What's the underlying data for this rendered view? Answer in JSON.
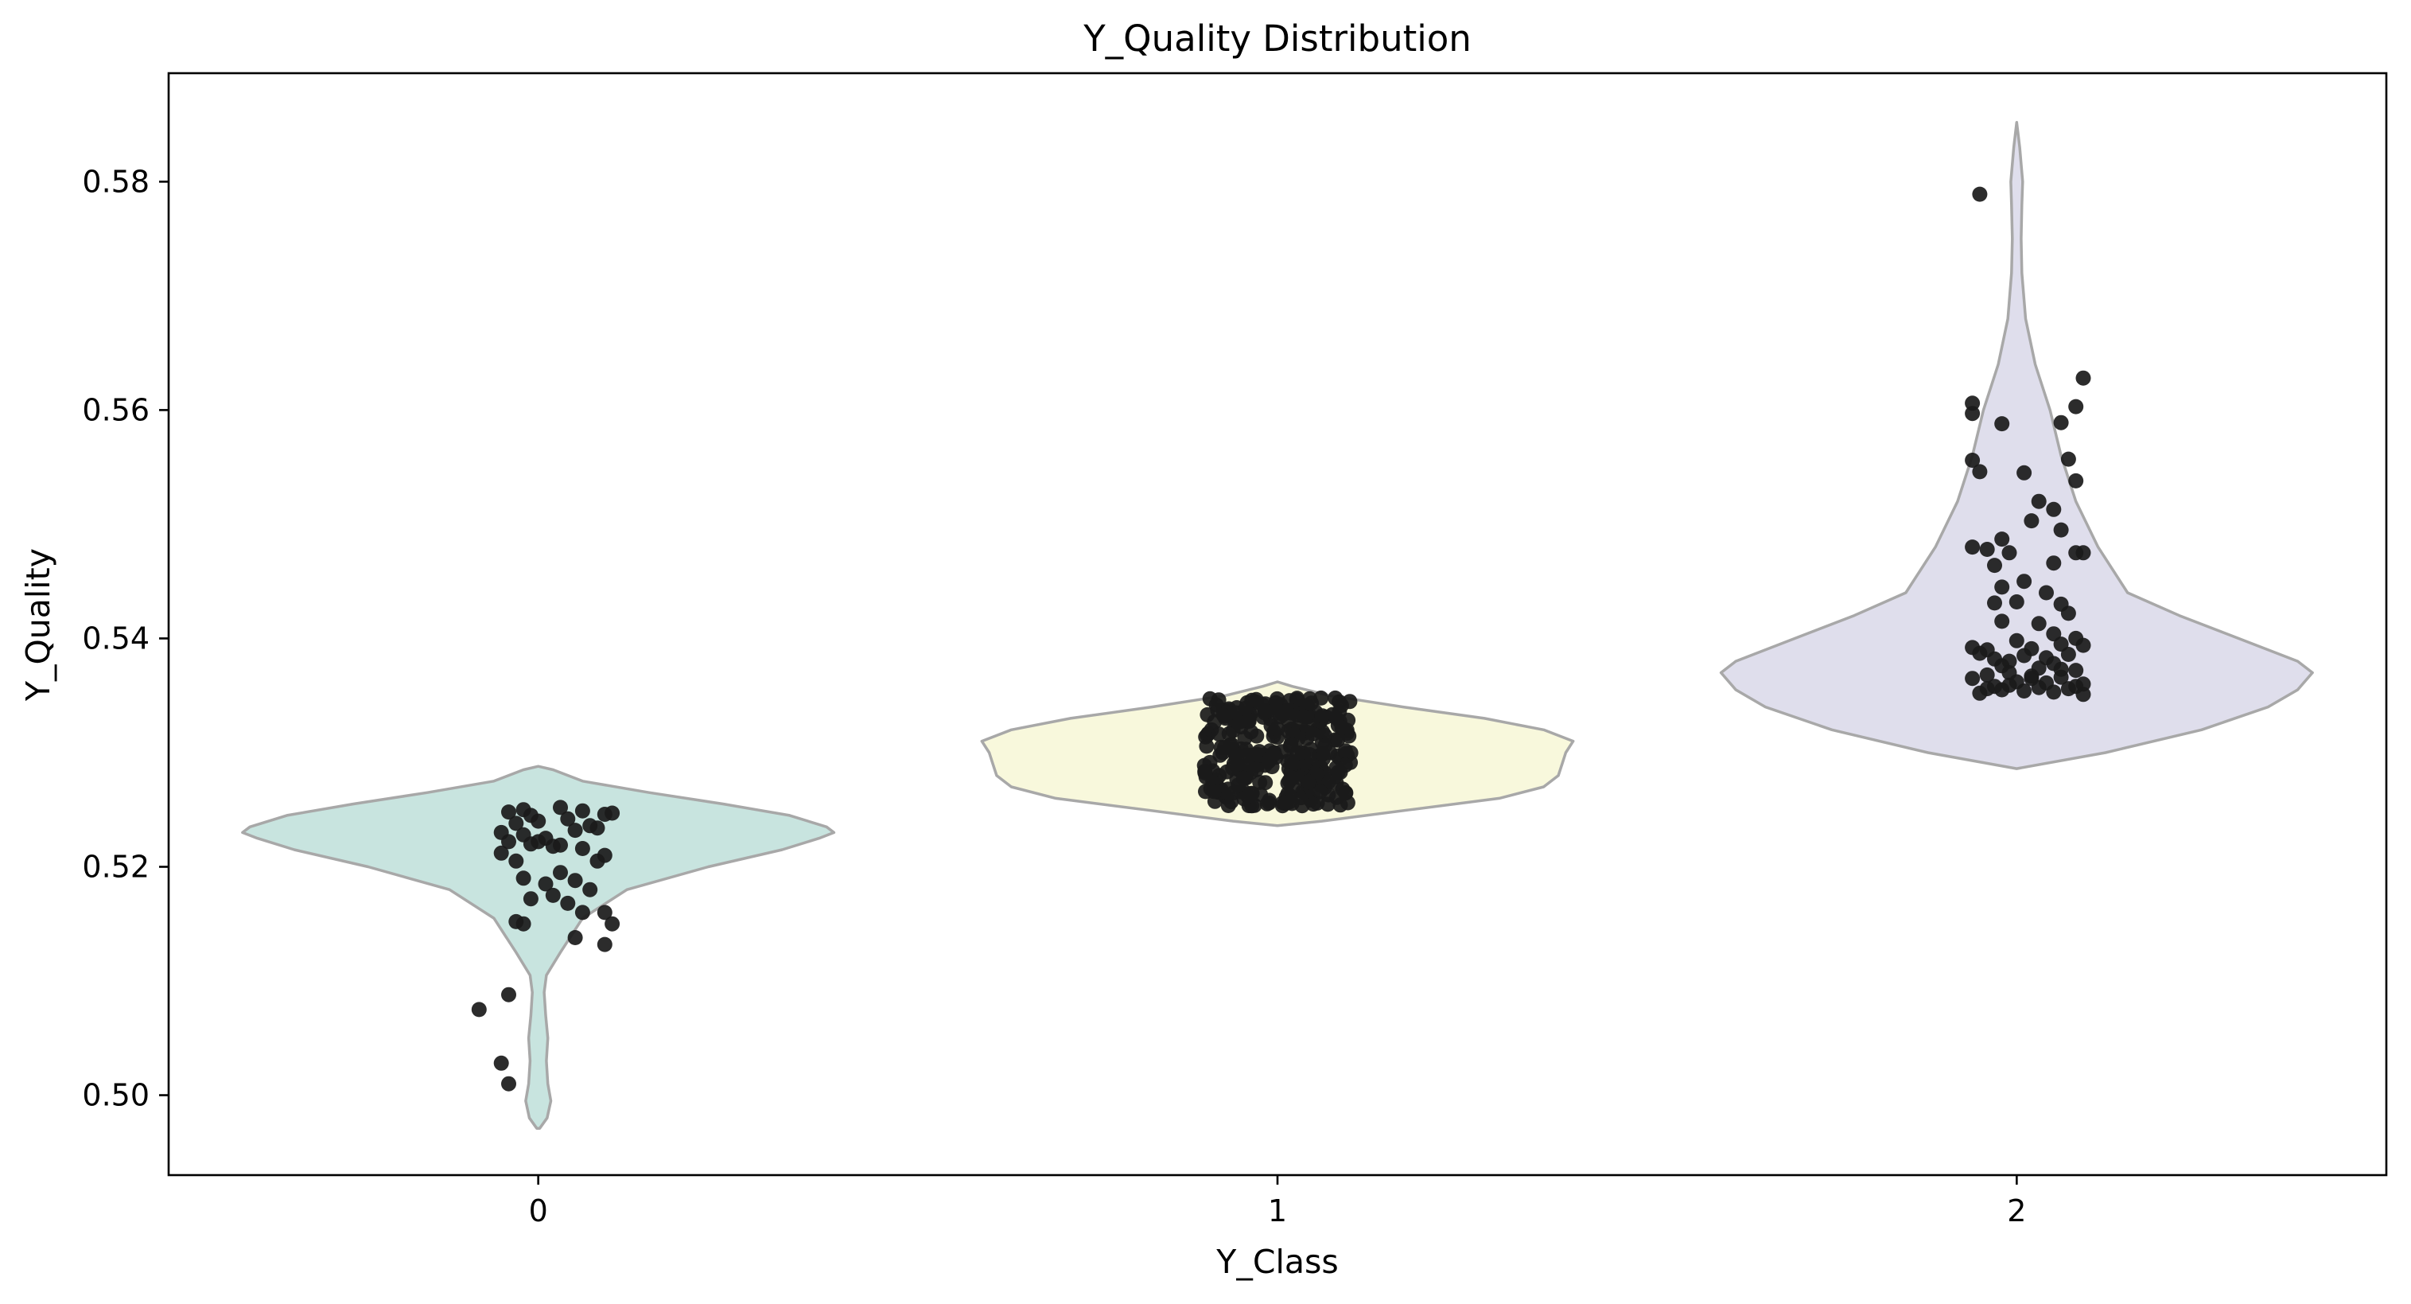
{
  "chart_data": {
    "type": "violin",
    "title": "Y_Quality Distribution",
    "xlabel": "Y_Class",
    "ylabel": "Y_Quality",
    "categories": [
      "0",
      "1",
      "2"
    ],
    "ylim": [
      0.493,
      0.5895
    ],
    "yticks": [
      "0.50",
      "0.52",
      "0.54",
      "0.56",
      "0.58"
    ],
    "grid": false,
    "legend": "none",
    "colors": {
      "violin_fills": [
        "#c8e4df",
        "#f8f8dc",
        "#dfdeec"
      ],
      "violin_outline": "#a8a8a8",
      "points": "#1a1a1a"
    },
    "violins": [
      {
        "category": "0",
        "profile": [
          [
            0.4971,
            0.002
          ],
          [
            0.498,
            0.012
          ],
          [
            0.4995,
            0.017
          ],
          [
            0.501,
            0.013
          ],
          [
            0.503,
            0.011
          ],
          [
            0.505,
            0.013
          ],
          [
            0.507,
            0.01
          ],
          [
            0.509,
            0.008
          ],
          [
            0.5105,
            0.011
          ],
          [
            0.5125,
            0.03
          ],
          [
            0.5155,
            0.06
          ],
          [
            0.518,
            0.12
          ],
          [
            0.52,
            0.23
          ],
          [
            0.5215,
            0.33
          ],
          [
            0.5225,
            0.38
          ],
          [
            0.523,
            0.4
          ],
          [
            0.5235,
            0.39
          ],
          [
            0.5245,
            0.34
          ],
          [
            0.5255,
            0.25
          ],
          [
            0.5265,
            0.15
          ],
          [
            0.5275,
            0.06
          ],
          [
            0.5285,
            0.02
          ],
          [
            0.5288,
            0.0
          ]
        ],
        "points": [
          [
            -0.04,
            0.5248
          ],
          [
            -0.02,
            0.525
          ],
          [
            -0.01,
            0.5245
          ],
          [
            0.03,
            0.5252
          ],
          [
            0.06,
            0.5249
          ],
          [
            0.09,
            0.5246
          ],
          [
            -0.03,
            0.5238
          ],
          [
            0.0,
            0.524
          ],
          [
            0.04,
            0.5242
          ],
          [
            0.07,
            0.5236
          ],
          [
            0.1,
            0.5247
          ],
          [
            -0.05,
            0.523
          ],
          [
            -0.02,
            0.5228
          ],
          [
            0.01,
            0.5225
          ],
          [
            0.05,
            0.5232
          ],
          [
            0.08,
            0.5234
          ],
          [
            -0.04,
            0.5222
          ],
          [
            -0.01,
            0.522
          ],
          [
            0.02,
            0.5218
          ],
          [
            0.06,
            0.5216
          ],
          [
            0.09,
            0.521
          ],
          [
            -0.05,
            0.5212
          ],
          [
            -0.03,
            0.5205
          ],
          [
            0.0,
            0.5222
          ],
          [
            0.03,
            0.5219
          ],
          [
            0.08,
            0.5205
          ],
          [
            -0.02,
            0.519
          ],
          [
            0.01,
            0.5185
          ],
          [
            0.03,
            0.5195
          ],
          [
            0.05,
            0.5188
          ],
          [
            0.07,
            0.518
          ],
          [
            0.02,
            0.5175
          ],
          [
            0.04,
            0.5168
          ],
          [
            -0.01,
            0.5172
          ],
          [
            0.09,
            0.516
          ],
          [
            0.06,
            0.516
          ],
          [
            -0.03,
            0.5152
          ],
          [
            -0.02,
            0.515
          ],
          [
            0.1,
            0.515
          ],
          [
            0.05,
            0.5138
          ],
          [
            0.09,
            0.5132
          ],
          [
            -0.08,
            0.5075
          ],
          [
            -0.04,
            0.5088
          ],
          [
            -0.05,
            0.5028
          ],
          [
            -0.04,
            0.501
          ]
        ]
      },
      {
        "category": "1",
        "profile": [
          [
            0.5236,
            0.0
          ],
          [
            0.524,
            0.06
          ],
          [
            0.525,
            0.18
          ],
          [
            0.526,
            0.3
          ],
          [
            0.527,
            0.36
          ],
          [
            0.528,
            0.38
          ],
          [
            0.529,
            0.385
          ],
          [
            0.53,
            0.39
          ],
          [
            0.531,
            0.4
          ],
          [
            0.532,
            0.36
          ],
          [
            0.533,
            0.28
          ],
          [
            0.534,
            0.17
          ],
          [
            0.535,
            0.07
          ],
          [
            0.5358,
            0.02
          ],
          [
            0.5362,
            0.0
          ]
        ],
        "dense_cluster": {
          "x_range": [
            -0.1,
            0.1
          ],
          "y_range": [
            0.5253,
            0.5348
          ],
          "count": 300
        }
      },
      {
        "category": "2",
        "profile": [
          [
            0.5286,
            0.0
          ],
          [
            0.53,
            0.12
          ],
          [
            0.532,
            0.25
          ],
          [
            0.534,
            0.34
          ],
          [
            0.5355,
            0.38
          ],
          [
            0.537,
            0.4
          ],
          [
            0.538,
            0.38
          ],
          [
            0.54,
            0.3
          ],
          [
            0.542,
            0.22
          ],
          [
            0.544,
            0.15
          ],
          [
            0.548,
            0.11
          ],
          [
            0.552,
            0.08
          ],
          [
            0.556,
            0.06
          ],
          [
            0.56,
            0.045
          ],
          [
            0.564,
            0.025
          ],
          [
            0.568,
            0.012
          ],
          [
            0.572,
            0.007
          ],
          [
            0.575,
            0.006
          ],
          [
            0.578,
            0.007
          ],
          [
            0.58,
            0.008
          ],
          [
            0.583,
            0.004
          ],
          [
            0.5852,
            0.0
          ]
        ],
        "points": [
          [
            -0.05,
            0.5789
          ],
          [
            -0.06,
            0.5606
          ],
          [
            -0.06,
            0.5597
          ],
          [
            0.06,
            0.5589
          ],
          [
            -0.02,
            0.5588
          ],
          [
            0.08,
            0.5603
          ],
          [
            0.09,
            0.5628
          ],
          [
            0.07,
            0.5557
          ],
          [
            -0.06,
            0.5556
          ],
          [
            0.08,
            0.5538
          ],
          [
            -0.05,
            0.5546
          ],
          [
            0.01,
            0.5545
          ],
          [
            0.03,
            0.552
          ],
          [
            0.02,
            0.5503
          ],
          [
            0.05,
            0.5513
          ],
          [
            0.08,
            0.5475
          ],
          [
            -0.01,
            0.5475
          ],
          [
            0.06,
            0.5495
          ],
          [
            -0.04,
            0.5478
          ],
          [
            -0.02,
            0.5487
          ],
          [
            0.05,
            0.5466
          ],
          [
            0.01,
            0.545
          ],
          [
            -0.06,
            0.548
          ],
          [
            -0.03,
            0.5464
          ],
          [
            -0.02,
            0.5445
          ],
          [
            0.04,
            0.544
          ],
          [
            0.09,
            0.5475
          ],
          [
            -0.03,
            0.5431
          ],
          [
            0.06,
            0.543
          ],
          [
            0.0,
            0.5432
          ],
          [
            0.07,
            0.5422
          ],
          [
            -0.02,
            0.5415
          ],
          [
            0.03,
            0.5413
          ],
          [
            0.05,
            0.5404
          ],
          [
            0.08,
            0.54
          ],
          [
            -0.06,
            0.5392
          ],
          [
            -0.04,
            0.539
          ],
          [
            0.0,
            0.5398
          ],
          [
            0.02,
            0.5391
          ],
          [
            0.06,
            0.5395
          ],
          [
            0.09,
            0.5394
          ],
          [
            -0.05,
            0.5387
          ],
          [
            -0.03,
            0.5382
          ],
          [
            -0.01,
            0.538
          ],
          [
            0.01,
            0.5385
          ],
          [
            0.04,
            0.5383
          ],
          [
            0.07,
            0.5386
          ],
          [
            -0.02,
            0.5376
          ],
          [
            0.03,
            0.5374
          ],
          [
            0.05,
            0.5378
          ],
          [
            0.08,
            0.5372
          ],
          [
            -0.06,
            0.5365
          ],
          [
            -0.04,
            0.5368
          ],
          [
            -0.01,
            0.537
          ],
          [
            0.02,
            0.5367
          ],
          [
            0.06,
            0.5366
          ],
          [
            0.09,
            0.536
          ],
          [
            -0.03,
            0.5358
          ],
          [
            0.0,
            0.5362
          ],
          [
            0.04,
            0.5361
          ],
          [
            0.07,
            0.5356
          ],
          [
            -0.05,
            0.5352
          ],
          [
            -0.02,
            0.5355
          ],
          [
            0.01,
            0.5354
          ],
          [
            0.03,
            0.5357
          ],
          [
            0.05,
            0.5353
          ],
          [
            0.08,
            0.5358
          ],
          [
            0.09,
            0.5351
          ],
          [
            -0.04,
            0.5356
          ],
          [
            0.06,
            0.5373
          ],
          [
            0.02,
            0.5365
          ],
          [
            -0.01,
            0.5359
          ]
        ]
      }
    ]
  }
}
